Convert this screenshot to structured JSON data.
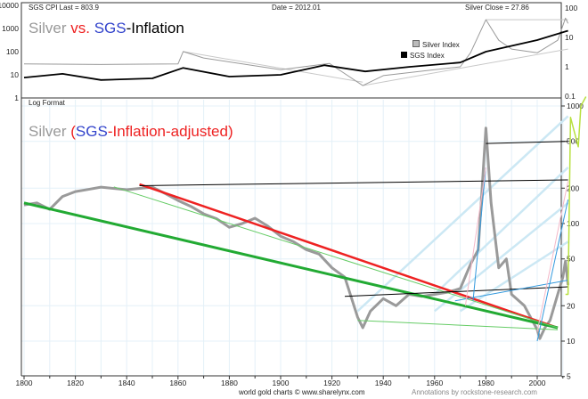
{
  "header": {
    "cpi_last": "SGS CPI Last = 803.9",
    "date": "Date = 2012.01",
    "silver_close": "Silver Close = 27.86"
  },
  "top_title": {
    "part1": "Silver ",
    "part2": "vs. ",
    "part3": "SGS",
    "part4": "-Inflation"
  },
  "legend": {
    "silver": "Silver Index",
    "sgs": "SGS Index"
  },
  "log_format": "Log Format",
  "bottom_title": {
    "part1": "Silver ",
    "part2": "(",
    "part3": "SGS",
    "part4": "-Inflation-adjusted)"
  },
  "footer": {
    "source": "world gold charts © www.sharelynx.com",
    "annotation": "Annotations by rockstone-research.com"
  },
  "colors": {
    "silver": "#9a9a9a",
    "sgs": "#000000",
    "red": "#ee2222",
    "blue": "#3344cc",
    "green": "#22aa33",
    "light_green": "#66cc66",
    "light_blue": "#cce8f4",
    "blue_line": "#3399dd",
    "pink": "#f4b8c8",
    "lime": "#b8e040"
  },
  "chart_data": [
    {
      "type": "line",
      "scale": "log",
      "title": "Silver vs. SGS-Inflation",
      "x_ticks": [
        1800,
        1820,
        1840,
        1860,
        1880,
        1900,
        1920,
        1940,
        1960,
        1980,
        2000
      ],
      "y_left_ticks": [
        "10000",
        "1000",
        "100",
        "10",
        "1"
      ],
      "y_left_range": [
        1,
        10000
      ],
      "y_right_ticks": [
        "100",
        "10",
        "1",
        "0.1"
      ],
      "y_right_range": [
        0.1,
        100
      ],
      "series": [
        {
          "name": "Silver Index",
          "axis": "right",
          "x": [
            1800,
            1830,
            1860,
            1862,
            1870,
            1900,
            1919,
            1932,
            1940,
            1960,
            1970,
            1974,
            1980,
            1985,
            1990,
            2000,
            2008,
            2011,
            2012
          ],
          "y": [
            1.25,
            1.2,
            1.25,
            3.3,
            2.0,
            0.8,
            1.3,
            0.23,
            0.5,
            0.8,
            1.0,
            3,
            40,
            8,
            4,
            3,
            8,
            45,
            30
          ]
        },
        {
          "name": "SGS Index",
          "axis": "left",
          "x": [
            1800,
            1815,
            1830,
            1850,
            1862,
            1880,
            1900,
            1917,
            1933,
            1950,
            1970,
            1980,
            2000,
            2012
          ],
          "y": [
            7.6,
            11,
            6,
            7,
            20,
            8.4,
            10,
            26,
            14,
            22,
            34,
            100,
            316,
            803.9
          ]
        }
      ],
      "annotations": [
        {
          "x": [
            1862,
            1932
          ],
          "y": [
            3.3,
            0.3
          ],
          "axis": "right"
        },
        {
          "x": [
            1932,
            2012
          ],
          "y": [
            0.23,
            4.0
          ],
          "axis": "right"
        },
        {
          "x": [
            1980,
            2012
          ],
          "y": [
            40,
            40
          ],
          "axis": "right"
        }
      ]
    },
    {
      "type": "line",
      "scale": "log",
      "title": "Silver (SGS-Inflation-adjusted)",
      "x_ticks": [
        1800,
        1820,
        1840,
        1860,
        1880,
        1900,
        1920,
        1940,
        1960,
        1980,
        2000
      ],
      "x_range": [
        1800,
        2012
      ],
      "y_ticks": [
        "1000",
        "500",
        "200",
        "100",
        "50",
        "20",
        "10",
        "5"
      ],
      "y_range": [
        5,
        1000
      ],
      "series": [
        {
          "name": "Silver",
          "x": [
            1800,
            1805,
            1810,
            1815,
            1820,
            1825,
            1830,
            1840,
            1850,
            1855,
            1860,
            1865,
            1870,
            1875,
            1880,
            1885,
            1890,
            1895,
            1900,
            1905,
            1910,
            1915,
            1920,
            1925,
            1930,
            1932,
            1935,
            1940,
            1945,
            1950,
            1955,
            1960,
            1965,
            1970,
            1974,
            1977,
            1980,
            1982,
            1985,
            1988,
            1990,
            1995,
            2000,
            2001,
            2003,
            2005,
            2008,
            2010,
            2011,
            2012
          ],
          "y": [
            144,
            150,
            132,
            170,
            187,
            195,
            204,
            194,
            204,
            180,
            157,
            140,
            121,
            110,
            93,
            100,
            111,
            95,
            78,
            70,
            60,
            55,
            42,
            35,
            16,
            13,
            18,
            23,
            20,
            25,
            24,
            25,
            26,
            28,
            45,
            60,
            650,
            150,
            42,
            50,
            25,
            20,
            12.5,
            10.5,
            13,
            15,
            25,
            35,
            48,
            30
          ]
        }
      ],
      "annotations": [
        {
          "color": "red",
          "x": [
            1845,
            2008
          ],
          "y": [
            216,
            13
          ]
        },
        {
          "color": "green",
          "x": [
            1800,
            2008
          ],
          "y": [
            150,
            13
          ]
        },
        {
          "color": "light_green",
          "x": [
            1835,
            2008
          ],
          "y": [
            205,
            13
          ]
        },
        {
          "color": "light_green",
          "x": [
            1930,
            2008
          ],
          "y": [
            15,
            12.5
          ]
        },
        {
          "color": "sgs",
          "x": [
            1845,
            2012
          ],
          "y": [
            210,
            235
          ]
        },
        {
          "color": "sgs",
          "x": [
            1925,
            2012
          ],
          "y": [
            24,
            29
          ]
        },
        {
          "color": "sgs",
          "x": [
            1980,
            2012
          ],
          "y": [
            480,
            500
          ]
        },
        {
          "color": "light_blue",
          "x": [
            1930,
            2012
          ],
          "y": [
            18,
            820
          ]
        },
        {
          "color": "light_blue",
          "x": [
            1960,
            2012
          ],
          "y": [
            25,
            300
          ]
        },
        {
          "color": "light_blue",
          "x": [
            1960,
            2012
          ],
          "y": [
            18,
            150
          ]
        },
        {
          "color": "light_blue",
          "x": [
            1970,
            2012
          ],
          "y": [
            18,
            70
          ]
        },
        {
          "color": "blue_line",
          "x": [
            1968,
            2012
          ],
          "y": [
            22,
            33
          ]
        },
        {
          "color": "blue_line",
          "x": [
            2000,
            2012
          ],
          "y": [
            10,
            160
          ]
        },
        {
          "color": "blue_line",
          "x": [
            1975,
            1980
          ],
          "y": [
            22,
            300
          ]
        },
        {
          "color": "pink",
          "x": [
            2000,
            2012
          ],
          "y": [
            12,
            230
          ]
        },
        {
          "color": "pink",
          "x": [
            1972,
            1980
          ],
          "y": [
            20,
            300
          ]
        },
        {
          "color": "lime",
          "x": [
            2011,
            2012,
            2013,
            2016,
            2017,
            2019
          ],
          "y": [
            25,
            25,
            800,
            450,
            1000,
            1200
          ]
        }
      ]
    }
  ]
}
